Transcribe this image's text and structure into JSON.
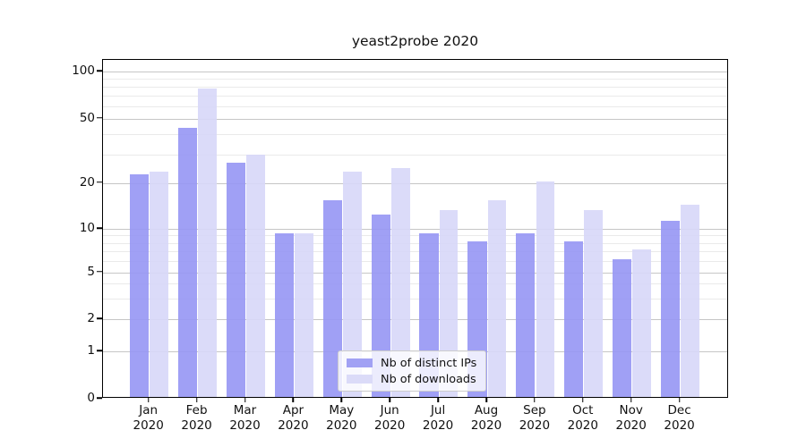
{
  "title": "yeast2probe 2020",
  "chart_data": {
    "type": "bar",
    "title": "yeast2probe 2020",
    "xlabel": "",
    "ylabel": "",
    "y_scale": "symlog",
    "ylim": [
      0,
      110
    ],
    "grid": "on",
    "legend_position": "lower center",
    "categories": [
      "Jan",
      "Feb",
      "Mar",
      "Apr",
      "May",
      "Jun",
      "Jul",
      "Aug",
      "Sep",
      "Oct",
      "Nov",
      "Dec"
    ],
    "category_year": "2020",
    "yticks": [
      100,
      50,
      20,
      10,
      5,
      2,
      1,
      0
    ],
    "yticks_minor": [
      90,
      80,
      70,
      60,
      40,
      30,
      9,
      8,
      7,
      6,
      4,
      3
    ],
    "series": [
      {
        "name": "Nb of distinct IPs",
        "display_color": "#a1a1f4",
        "fill_color": "rgba(150,150,244,0.9)",
        "values": [
          22,
          43,
          26,
          9,
          15,
          12,
          9,
          8,
          9,
          8,
          6,
          11
        ]
      },
      {
        "name": "Nb of downloads",
        "display_color": "#dbdbf8",
        "fill_color": "rgba(215,215,248,0.9)",
        "values": [
          23,
          76,
          29,
          9,
          23,
          24,
          13,
          15,
          20,
          13,
          7,
          14
        ]
      }
    ],
    "colors": {
      "major_grid": "#c6c6c6",
      "minor_grid": "#eaeaea",
      "axis": "#000000",
      "text": "#111111"
    }
  }
}
